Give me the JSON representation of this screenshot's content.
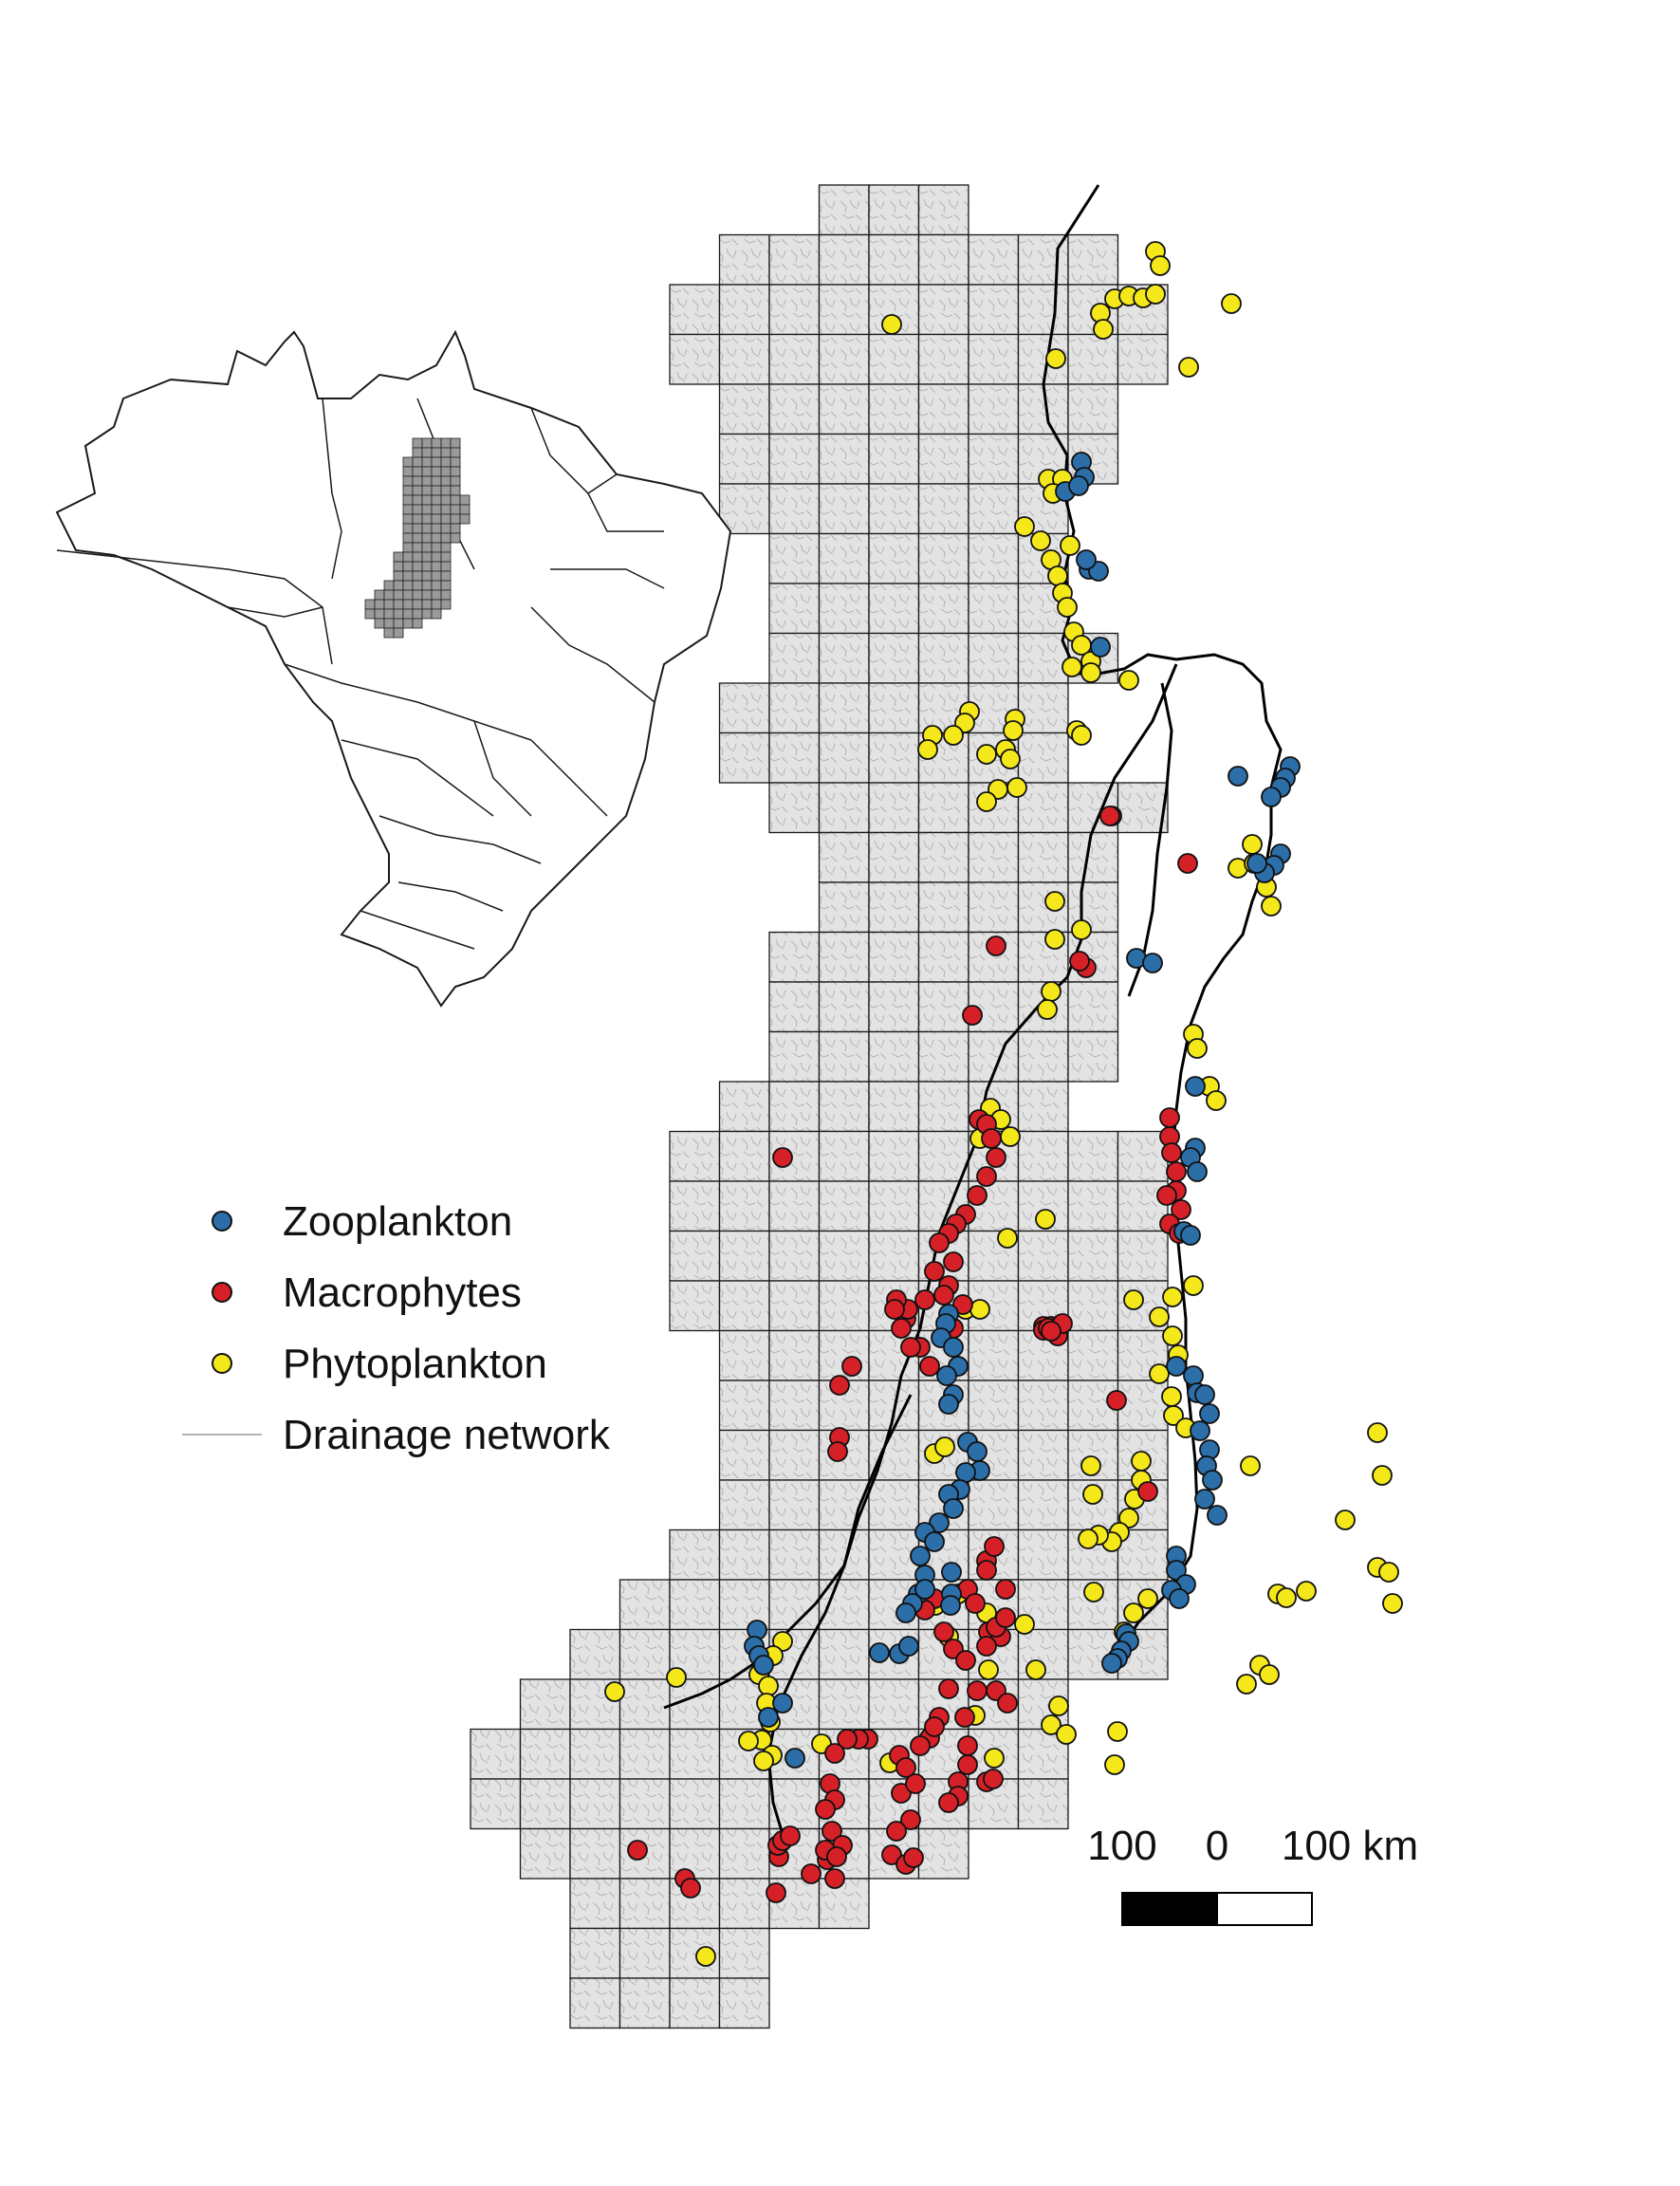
{
  "legend": {
    "items": [
      {
        "label": "Zooplankton",
        "color": "#2b6ea8"
      },
      {
        "label": "Macrophytes",
        "color": "#d62027"
      },
      {
        "label": "Phytoplankton",
        "color": "#f4e81a"
      }
    ],
    "line_label": "Drainage network",
    "line_color": "#9a9a9a"
  },
  "scale_bar": {
    "left_label": "100",
    "mid_label": "0",
    "right_label": "100 km"
  },
  "colors": {
    "grid_fill": "#e2e2e2",
    "grid_stroke": "#1a1a1a",
    "river": "#000000",
    "point_stroke": "#111111",
    "inset_study_area": "#9a9a9a"
  },
  "icons": {
    "inset_map": "brazil-outline-icon"
  }
}
